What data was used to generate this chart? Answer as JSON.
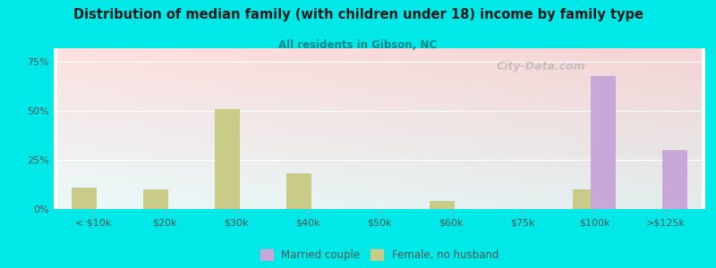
{
  "title": "Distribution of median family (with children under 18) income by family type",
  "subtitle": "All residents in Gibson, NC",
  "categories": [
    "< $10k",
    "$20k",
    "$30k",
    "$40k",
    "$50k",
    "$60k",
    "$75k",
    "$100k",
    ">$125k"
  ],
  "married_couple": [
    0,
    0,
    0,
    0,
    0,
    0,
    0,
    68,
    30
  ],
  "female_no_husband": [
    11,
    10,
    51,
    18,
    0,
    4,
    0,
    10,
    0
  ],
  "married_color": "#c8a8d8",
  "female_color": "#c8cc88",
  "bg_color": "#00e8e8",
  "title_color": "#1a1a1a",
  "subtitle_color": "#008888",
  "axis_color": "#555555",
  "yticks": [
    0,
    25,
    50,
    75
  ],
  "ylim": [
    0,
    82
  ],
  "bar_width": 0.35,
  "watermark": "City-Data.com",
  "legend_married": "Married couple",
  "legend_female": "Female, no husband"
}
